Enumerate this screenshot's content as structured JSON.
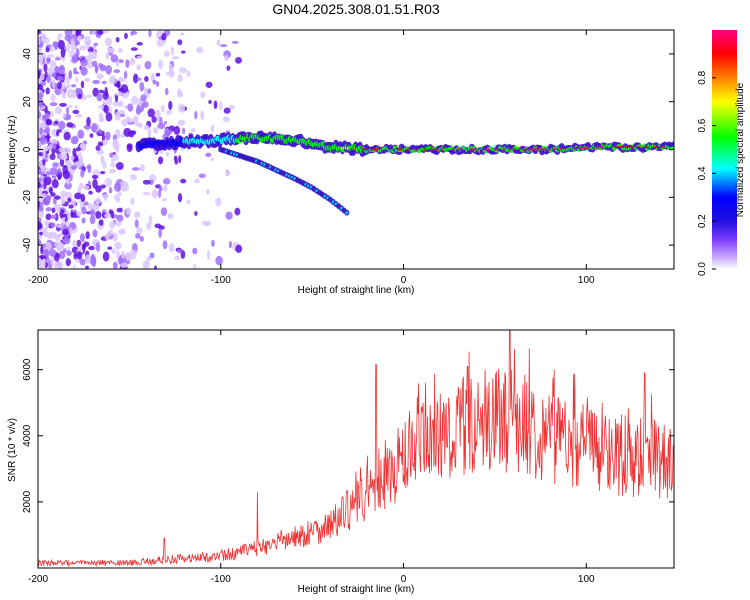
{
  "title": "GN04.2025.308.01.51.R03",
  "chart_data": [
    {
      "type": "heatmap",
      "name": "spectrogram",
      "xlabel": "Height of straight line (km)",
      "ylabel": "Frequency (Hz)",
      "xlim": [
        -200,
        148
      ],
      "ylim": [
        -50,
        50
      ],
      "xticks": [
        -200,
        -100,
        0,
        100
      ],
      "yticks": [
        -40,
        -20,
        0,
        20,
        40
      ],
      "colorbar": {
        "label": "Normalized spectral amplitude",
        "range": [
          0,
          1
        ],
        "ticks": [
          "0.0",
          "0.2",
          "0.4",
          "0.6",
          "0.8"
        ],
        "colors": [
          "#ffffff",
          "#a070ff",
          "#6010e0",
          "#0000ff",
          "#00ffff",
          "#00ff00",
          "#ffff00",
          "#ff8000",
          "#ff0000",
          "#ff0080"
        ]
      },
      "description_points": {
        "noise_region_x": [
          -200,
          -100
        ],
        "main_trace": {
          "x": [
            -145,
            -120,
            -100,
            -80,
            -60,
            -40,
            -20,
            0,
            20,
            50,
            80,
            110,
            148
          ],
          "freq": [
            2,
            3,
            4,
            5,
            4,
            1,
            0,
            0,
            0,
            0,
            0,
            1,
            1
          ],
          "amplitude": [
            0.2,
            0.3,
            0.4,
            0.45,
            0.45,
            0.5,
            0.85,
            0.9,
            0.9,
            0.95,
            0.95,
            0.9,
            0.9
          ]
        },
        "branch_trace": {
          "x": [
            -100,
            -80,
            -60,
            -50,
            -40,
            -30
          ],
          "freq": [
            0,
            -5,
            -12,
            -16,
            -21,
            -27
          ]
        }
      }
    },
    {
      "type": "line",
      "name": "snr",
      "color": "#ee3333",
      "xlabel": "Height of straight line (km)",
      "ylabel": "SNR (10 * v/v)",
      "xlim": [
        -200,
        148
      ],
      "ylim": [
        0,
        7200
      ],
      "xticks": [
        -200,
        -100,
        0,
        100
      ],
      "yticks": [
        2000,
        4000,
        6000
      ],
      "envelope": {
        "x": [
          -200,
          -150,
          -130,
          -100,
          -80,
          -60,
          -40,
          -20,
          -10,
          0,
          20,
          40,
          60,
          80,
          100,
          120,
          148
        ],
        "y": [
          150,
          150,
          250,
          350,
          600,
          900,
          1300,
          2200,
          2700,
          3300,
          4000,
          4400,
          4500,
          4000,
          3700,
          3400,
          3200
        ]
      },
      "spikes": [
        {
          "x": -131,
          "y": 900
        },
        {
          "x": -80,
          "y": 2300
        },
        {
          "x": -15,
          "y": 6150
        },
        {
          "x": 58,
          "y": 7200
        },
        {
          "x": 35,
          "y": 6100
        },
        {
          "x": 132,
          "y": 5900
        }
      ]
    }
  ]
}
